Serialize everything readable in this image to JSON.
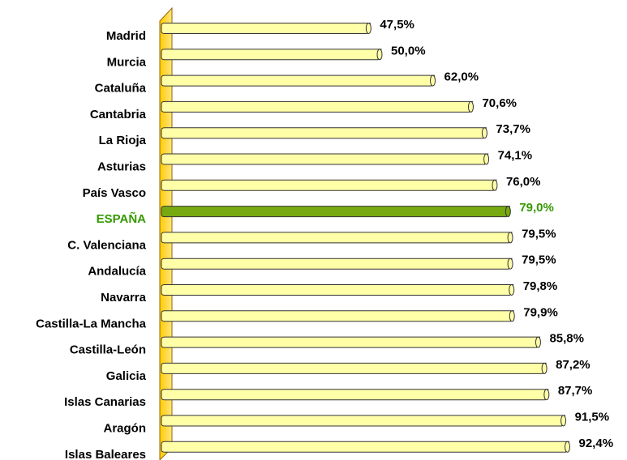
{
  "chart_data": {
    "type": "bar",
    "orientation": "horizontal",
    "categories": [
      "Madrid",
      "Murcia",
      "Cataluña",
      "Cantabria",
      "La Rioja",
      "Asturias",
      "País Vasco",
      "ESPAÑA",
      "C. Valenciana",
      "Andalucía",
      "Navarra",
      "Castilla-La Mancha",
      "Castilla-León",
      "Galicia",
      "Islas Canarias",
      "Aragón",
      "Islas Baleares"
    ],
    "values": [
      47.5,
      50.0,
      62.0,
      70.6,
      73.7,
      74.1,
      76.0,
      79.0,
      79.5,
      79.5,
      79.8,
      79.9,
      85.8,
      87.2,
      87.7,
      91.5,
      92.4
    ],
    "value_labels": [
      "47,5%",
      "50,0%",
      "62,0%",
      "70,6%",
      "73,7%",
      "74,1%",
      "76,0%",
      "79,0%",
      "79,5%",
      "79,5%",
      "79,8%",
      "79,9%",
      "85,8%",
      "87,2%",
      "87,7%",
      "91,5%",
      "92,4%"
    ],
    "colors": [
      "#ffffa8",
      "#ffffa8",
      "#ffffa8",
      "#ffffa8",
      "#ffffa8",
      "#ffffa8",
      "#ffffa8",
      "#77aa11",
      "#ffffa8",
      "#ffffa8",
      "#ffffa8",
      "#ffffa8",
      "#ffffa8",
      "#ffffa8",
      "#ffffa8",
      "#ffffa8",
      "#ffffa8"
    ],
    "text_colors": [
      "#000000",
      "#000000",
      "#000000",
      "#000000",
      "#000000",
      "#000000",
      "#000000",
      "#339900",
      "#000000",
      "#000000",
      "#000000",
      "#000000",
      "#000000",
      "#000000",
      "#000000",
      "#000000",
      "#000000"
    ],
    "xlim": [
      0,
      100
    ]
  }
}
